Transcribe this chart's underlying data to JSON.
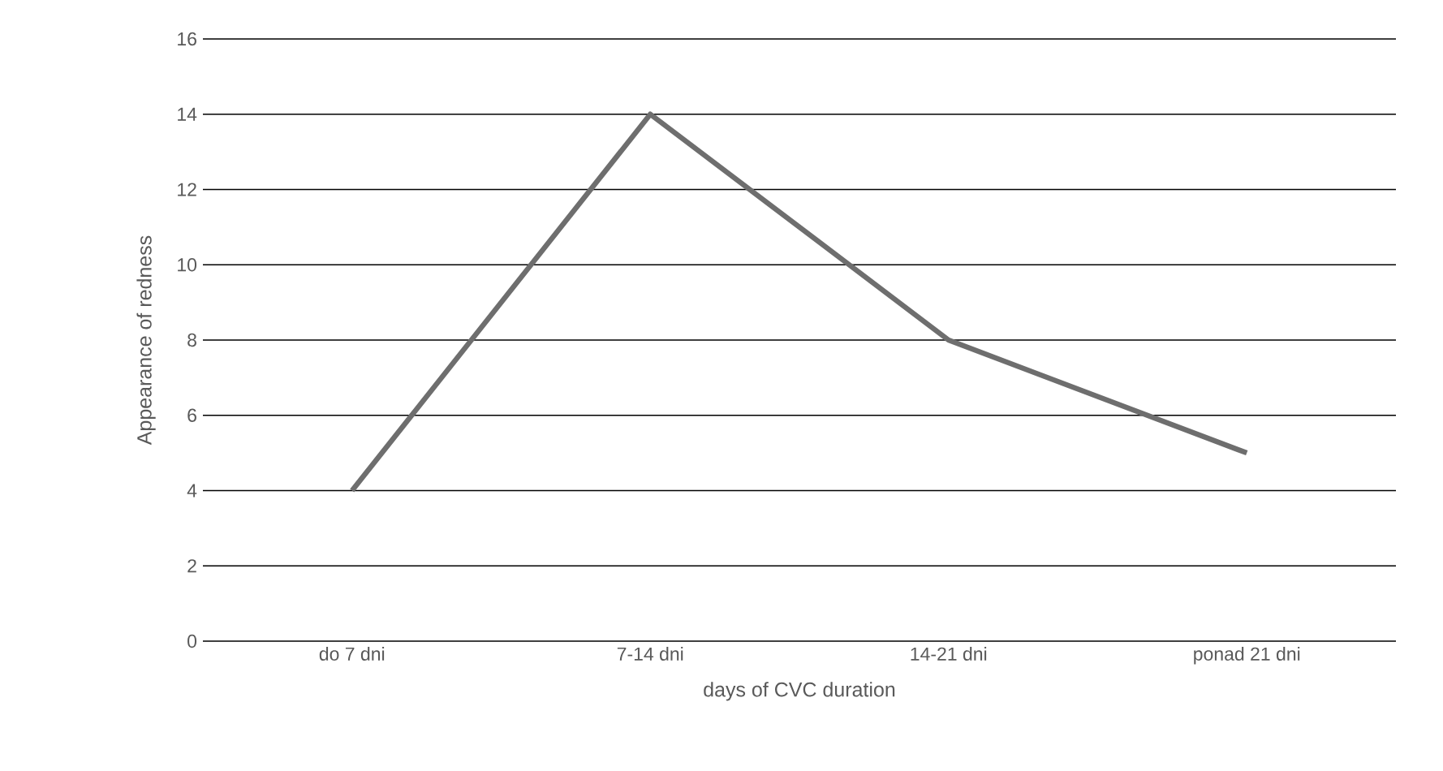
{
  "chart_data": {
    "type": "line",
    "xlabel": "days of CVC duration",
    "ylabel": "Appearance of redness",
    "categories": [
      "do 7 dni",
      "7-14 dni",
      "14-21 dni",
      "ponad 21 dni"
    ],
    "series": [
      {
        "color": "#6e6e6e",
        "values": [
          4,
          14,
          8,
          5
        ]
      }
    ],
    "ylim": [
      0,
      16
    ],
    "yticks": [
      0,
      2,
      4,
      6,
      8,
      10,
      12,
      14,
      16
    ],
    "grid": "y",
    "legend": false,
    "marker": "none",
    "line_style": "solid"
  }
}
